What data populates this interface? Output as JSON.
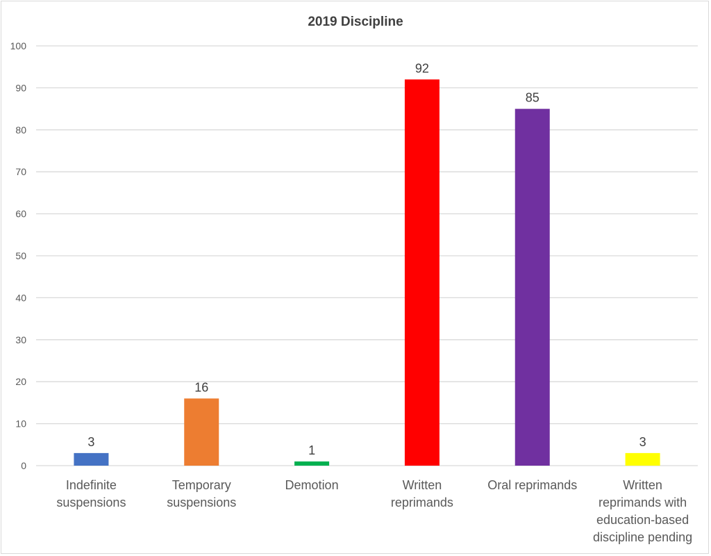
{
  "chart_data": {
    "type": "bar",
    "title": "2019 Discipline",
    "categories": [
      [
        "Indefinite",
        "suspensions"
      ],
      [
        "Temporary",
        "suspensions"
      ],
      [
        "Demotion"
      ],
      [
        "Written",
        "reprimands"
      ],
      [
        "Oral reprimands"
      ],
      [
        "Written",
        "reprimands with",
        "education-based",
        "discipline pending"
      ]
    ],
    "values": [
      3,
      16,
      1,
      92,
      85,
      3
    ],
    "colors": [
      "#4472c4",
      "#ed7d31",
      "#00b050",
      "#ff0000",
      "#7030a0",
      "#ffff00"
    ],
    "ylim": [
      0,
      100
    ],
    "yticks": [
      0,
      10,
      20,
      30,
      40,
      50,
      60,
      70,
      80,
      90,
      100
    ],
    "grid": true,
    "data_labels": true,
    "legend": "none"
  }
}
